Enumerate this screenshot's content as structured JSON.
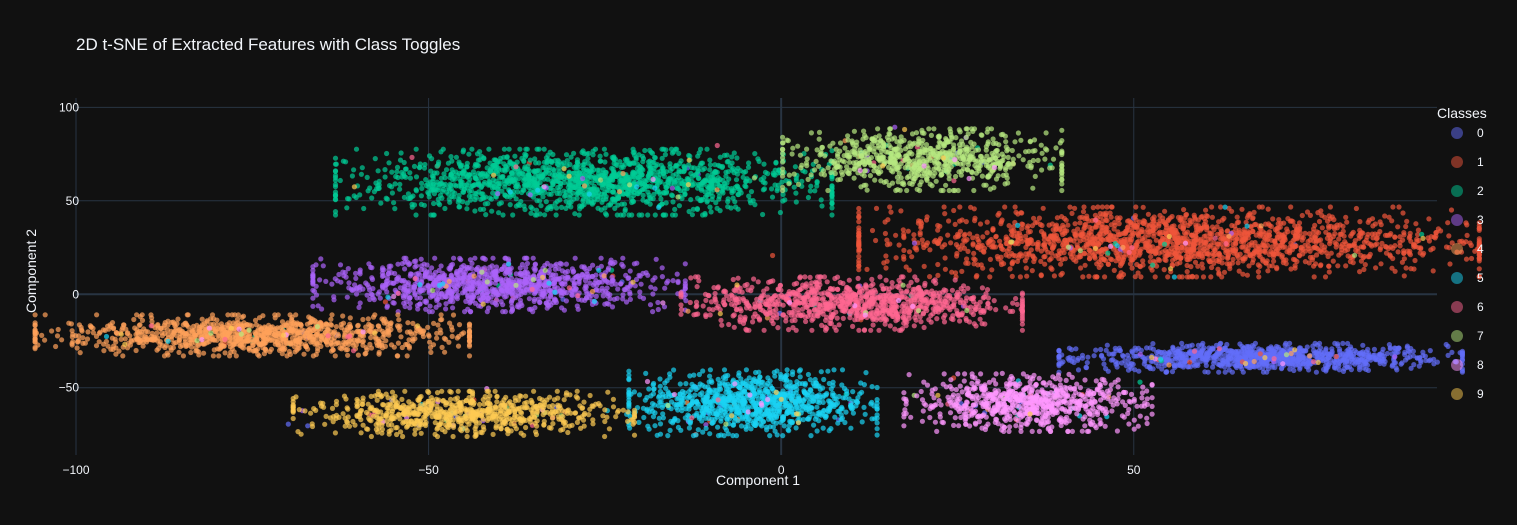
{
  "chart_data": {
    "type": "scatter",
    "title": "2D t-SNE of Extracted Features with Class Toggles",
    "xlabel": "Component 1",
    "ylabel": "Component 2",
    "xlim": [
      -100,
      93
    ],
    "ylim": [
      -86,
      105
    ],
    "x_ticks": [
      -100,
      -50,
      0,
      50
    ],
    "x_tick_labels": [
      "−100",
      "−50",
      "0",
      "50"
    ],
    "y_ticks": [
      -50,
      0,
      50,
      100
    ],
    "y_tick_labels": [
      "−50",
      "0",
      "50",
      "100"
    ],
    "grid": true,
    "legend_title": "Classes",
    "legend_position": "right",
    "series": [
      {
        "name": "0",
        "color": "#636efa",
        "cx": 68,
        "cy": -34,
        "sx": 13,
        "sy": 3.5,
        "n": 900
      },
      {
        "name": "1",
        "color": "#ef553b",
        "cx": 55,
        "cy": 28,
        "sx": 20,
        "sy": 8.5,
        "n": 1700
      },
      {
        "name": "2",
        "color": "#00cc96",
        "cx": -28,
        "cy": 60,
        "sx": 16,
        "sy": 8,
        "n": 1500
      },
      {
        "name": "3",
        "color": "#ab63fa",
        "cx": -40,
        "cy": 5,
        "sx": 12,
        "sy": 6.5,
        "n": 1000
      },
      {
        "name": "4",
        "color": "#ffa15a",
        "cx": -75,
        "cy": -22,
        "sx": 14,
        "sy": 5,
        "n": 1000
      },
      {
        "name": "5",
        "color": "#19d3f3",
        "cx": -4,
        "cy": -58,
        "sx": 8,
        "sy": 8,
        "n": 900
      },
      {
        "name": "6",
        "color": "#ff6692",
        "cx": 10,
        "cy": -5,
        "sx": 11,
        "sy": 6.5,
        "n": 900
      },
      {
        "name": "7",
        "color": "#b6e880",
        "cx": 20,
        "cy": 72,
        "sx": 9,
        "sy": 7.5,
        "n": 700
      },
      {
        "name": "8",
        "color": "#ff97ff",
        "cx": 35,
        "cy": -58,
        "sx": 8,
        "sy": 7,
        "n": 700
      },
      {
        "name": "9",
        "color": "#fecb52",
        "cx": -45,
        "cy": -64,
        "sx": 11,
        "sy": 5.5,
        "n": 700
      }
    ]
  }
}
